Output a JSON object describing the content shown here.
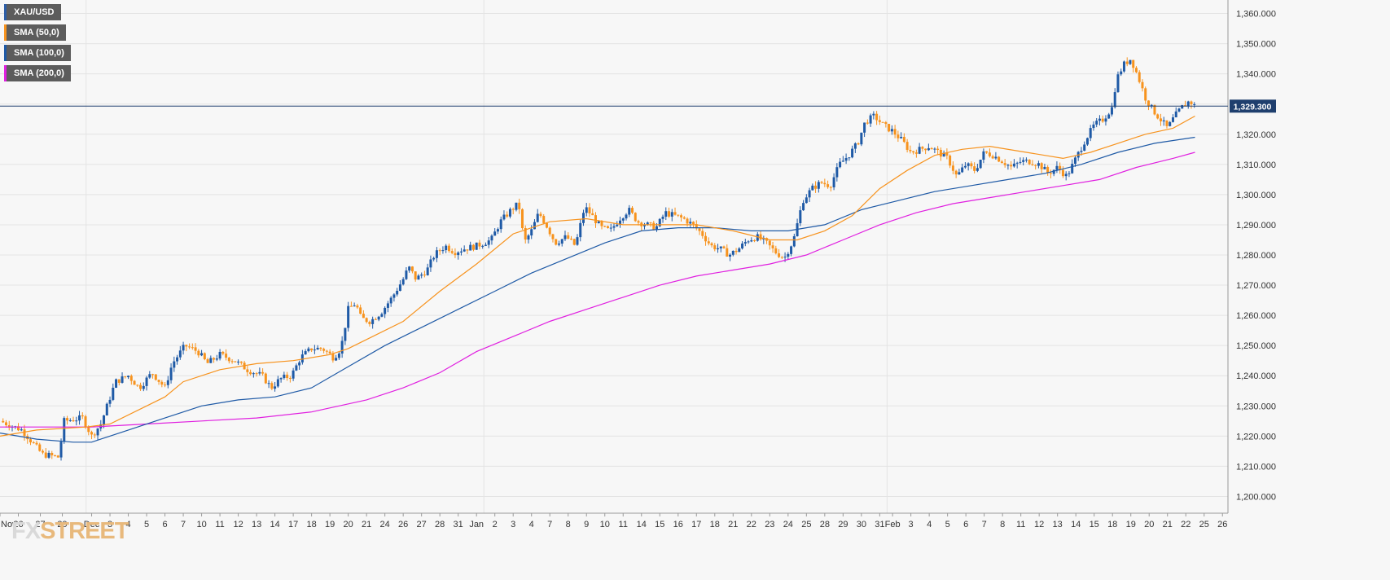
{
  "legend": [
    {
      "label": "XAU/USD",
      "color": "#2e5fa8"
    },
    {
      "label": "SMA (50,0)",
      "color": "#f7931e"
    },
    {
      "label": "SMA (100,0)",
      "color": "#1f5aa6"
    },
    {
      "label": "SMA (200,0)",
      "color": "#e020e0"
    }
  ],
  "logo": {
    "part1": "FX",
    "part2": "STREET"
  },
  "colors": {
    "bullish": "#1f5aa6",
    "bearish": "#f7931e",
    "sma50": "#f7931e",
    "sma100": "#1f5aa6",
    "sma200": "#e020e0",
    "price_line": "#1f3f6e",
    "grid": "#e4e4e4"
  },
  "chart_data": {
    "type": "candlestick",
    "instrument": "XAU/USD",
    "last_price": 1329.3,
    "last_price_label": "1,329.300",
    "ylim": [
      1195,
      1365
    ],
    "yticks": [
      1200,
      1210,
      1220,
      1230,
      1240,
      1250,
      1260,
      1270,
      1280,
      1290,
      1300,
      1310,
      1320,
      1330,
      1340,
      1350,
      1360
    ],
    "ytick_labels": [
      "1,200.000",
      "1,210.000",
      "1,220.000",
      "1,230.000",
      "1,240.000",
      "1,250.000",
      "1,260.000",
      "1,270.000",
      "1,280.000",
      "1,290.000",
      "1,300.000",
      "1,310.000",
      "1,320.000",
      "1,330.000",
      "1,340.000",
      "1,350.000",
      "1,360.000"
    ],
    "x_labels": [
      "Nov",
      "26",
      "27",
      "29",
      "Dec",
      "3",
      "4",
      "5",
      "6",
      "7",
      "10",
      "11",
      "12",
      "13",
      "14",
      "17",
      "18",
      "19",
      "20",
      "21",
      "24",
      "26",
      "27",
      "28",
      "31",
      "Jan",
      "2",
      "3",
      "4",
      "7",
      "8",
      "9",
      "10",
      "11",
      "14",
      "15",
      "16",
      "17",
      "18",
      "21",
      "22",
      "23",
      "24",
      "25",
      "28",
      "29",
      "30",
      "31",
      "Feb",
      "3",
      "4",
      "5",
      "6",
      "7",
      "8",
      "11",
      "12",
      "13",
      "14",
      "15",
      "18",
      "19",
      "20",
      "21",
      "22",
      "25",
      "26"
    ],
    "x_range": [
      0,
      67
    ],
    "x_label_index": [
      0.0,
      1.0,
      2.2,
      3.4,
      5.0,
      6.0,
      7.0,
      8.0,
      9.0,
      10.0,
      11.0,
      12.0,
      13.0,
      14.0,
      15.0,
      16.0,
      17.0,
      18.0,
      19.0,
      20.0,
      21.0,
      22.0,
      23.0,
      24.0,
      25.0,
      26.0,
      27.0,
      28.0,
      29.0,
      30.0,
      31.0,
      32.0,
      33.0,
      34.0,
      35.0,
      36.0,
      37.0,
      38.0,
      39.0,
      40.0,
      41.0,
      42.0,
      43.0,
      44.0,
      45.0,
      46.0,
      47.0,
      48.0,
      48.7,
      49.7,
      50.7,
      51.7,
      52.7,
      53.7,
      54.7,
      55.7,
      56.7,
      57.7,
      58.7,
      59.7,
      60.7,
      61.7,
      62.7,
      63.7,
      64.7,
      65.7,
      66.7
    ],
    "vertical_gridlines_at": [
      4.7,
      26.4,
      48.4
    ],
    "close_path": [
      [
        0,
        1225
      ],
      [
        1.2,
        1222
      ],
      [
        2.3,
        1214
      ],
      [
        3.2,
        1213
      ],
      [
        3.5,
        1225
      ],
      [
        4.5,
        1226
      ],
      [
        5.0,
        1220
      ],
      [
        5.5,
        1224
      ],
      [
        6.3,
        1238
      ],
      [
        7.0,
        1240
      ],
      [
        7.6,
        1236
      ],
      [
        8.3,
        1241
      ],
      [
        9.0,
        1236
      ],
      [
        9.4,
        1244
      ],
      [
        10.1,
        1250
      ],
      [
        10.8,
        1248
      ],
      [
        11.3,
        1244
      ],
      [
        12.0,
        1247
      ],
      [
        12.8,
        1245
      ],
      [
        13.5,
        1242
      ],
      [
        14.3,
        1240
      ],
      [
        14.8,
        1236
      ],
      [
        15.3,
        1239
      ],
      [
        15.9,
        1240
      ],
      [
        16.4,
        1246
      ],
      [
        17.0,
        1249
      ],
      [
        17.6,
        1249
      ],
      [
        18.2,
        1246
      ],
      [
        18.6,
        1249
      ],
      [
        19.0,
        1262
      ],
      [
        19.4,
        1264
      ],
      [
        19.7,
        1259
      ],
      [
        20.2,
        1258
      ],
      [
        20.8,
        1261
      ],
      [
        21.4,
        1266
      ],
      [
        22.0,
        1272
      ],
      [
        22.3,
        1276
      ],
      [
        22.7,
        1272
      ],
      [
        23.3,
        1275
      ],
      [
        23.7,
        1280
      ],
      [
        24.3,
        1283
      ],
      [
        24.8,
        1281
      ],
      [
        25.3,
        1282
      ],
      [
        26.0,
        1283
      ],
      [
        26.8,
        1285
      ],
      [
        27.3,
        1291
      ],
      [
        27.9,
        1295
      ],
      [
        28.3,
        1297
      ],
      [
        28.6,
        1284
      ],
      [
        29.0,
        1288
      ],
      [
        29.4,
        1294
      ],
      [
        29.8,
        1290
      ],
      [
        30.3,
        1284
      ],
      [
        30.9,
        1286
      ],
      [
        31.4,
        1283
      ],
      [
        31.9,
        1296
      ],
      [
        32.3,
        1293
      ],
      [
        32.8,
        1289
      ],
      [
        33.3,
        1288
      ],
      [
        33.8,
        1292
      ],
      [
        34.3,
        1295
      ],
      [
        34.8,
        1291
      ],
      [
        35.3,
        1290
      ],
      [
        35.8,
        1289
      ],
      [
        36.3,
        1294
      ],
      [
        36.8,
        1293
      ],
      [
        37.3,
        1292
      ],
      [
        37.8,
        1290
      ],
      [
        38.3,
        1287
      ],
      [
        38.8,
        1283
      ],
      [
        39.3,
        1282
      ],
      [
        39.8,
        1280
      ],
      [
        40.3,
        1282
      ],
      [
        40.8,
        1285
      ],
      [
        41.3,
        1286
      ],
      [
        41.8,
        1284
      ],
      [
        42.3,
        1281
      ],
      [
        42.8,
        1279
      ],
      [
        43.3,
        1285
      ],
      [
        43.8,
        1298
      ],
      [
        44.3,
        1302
      ],
      [
        44.8,
        1304
      ],
      [
        45.3,
        1303
      ],
      [
        45.8,
        1310
      ],
      [
        46.3,
        1313
      ],
      [
        46.8,
        1317
      ],
      [
        47.2,
        1324
      ],
      [
        47.7,
        1326
      ],
      [
        48.2,
        1323
      ],
      [
        48.7,
        1321
      ],
      [
        49.2,
        1318
      ],
      [
        49.7,
        1314
      ],
      [
        50.2,
        1315
      ],
      [
        50.7,
        1316
      ],
      [
        51.2,
        1314
      ],
      [
        51.7,
        1312
      ],
      [
        52.2,
        1306
      ],
      [
        52.7,
        1310
      ],
      [
        53.2,
        1308
      ],
      [
        53.7,
        1314
      ],
      [
        54.2,
        1313
      ],
      [
        54.7,
        1311
      ],
      [
        55.2,
        1309
      ],
      [
        55.7,
        1311
      ],
      [
        56.2,
        1311
      ],
      [
        56.7,
        1310
      ],
      [
        57.2,
        1307
      ],
      [
        57.7,
        1309
      ],
      [
        58.2,
        1306
      ],
      [
        58.7,
        1312
      ],
      [
        59.2,
        1318
      ],
      [
        59.7,
        1323
      ],
      [
        60.2,
        1325
      ],
      [
        60.7,
        1329
      ],
      [
        60.9,
        1338
      ],
      [
        61.3,
        1343
      ],
      [
        61.7,
        1345
      ],
      [
        62.1,
        1339
      ],
      [
        62.5,
        1332
      ],
      [
        62.9,
        1328
      ],
      [
        63.3,
        1325
      ],
      [
        63.7,
        1322
      ],
      [
        64.1,
        1326
      ],
      [
        64.5,
        1329
      ],
      [
        64.9,
        1331
      ],
      [
        65.2,
        1329.3
      ]
    ],
    "sma50_path": [
      [
        0,
        1220
      ],
      [
        2,
        1222
      ],
      [
        4.7,
        1223
      ],
      [
        6,
        1224
      ],
      [
        8,
        1230
      ],
      [
        9,
        1233
      ],
      [
        10,
        1238
      ],
      [
        12,
        1242
      ],
      [
        14,
        1244
      ],
      [
        16,
        1245
      ],
      [
        18,
        1247
      ],
      [
        19,
        1249
      ],
      [
        20,
        1252
      ],
      [
        22,
        1258
      ],
      [
        24,
        1268
      ],
      [
        26,
        1277
      ],
      [
        28,
        1287
      ],
      [
        30,
        1291
      ],
      [
        32,
        1292
      ],
      [
        34,
        1290
      ],
      [
        36,
        1290
      ],
      [
        38,
        1290
      ],
      [
        40,
        1288
      ],
      [
        42,
        1285
      ],
      [
        43.5,
        1285
      ],
      [
        45,
        1288
      ],
      [
        46.5,
        1293
      ],
      [
        48,
        1302
      ],
      [
        49.5,
        1308
      ],
      [
        51,
        1313
      ],
      [
        52.5,
        1315
      ],
      [
        54,
        1316
      ],
      [
        56,
        1314
      ],
      [
        58,
        1312
      ],
      [
        59.5,
        1314
      ],
      [
        61,
        1317
      ],
      [
        62.5,
        1320
      ],
      [
        64,
        1322
      ],
      [
        65.2,
        1326
      ]
    ],
    "sma100_path": [
      [
        0,
        1221
      ],
      [
        2,
        1219
      ],
      [
        4,
        1218
      ],
      [
        5,
        1218
      ],
      [
        7,
        1222
      ],
      [
        9,
        1226
      ],
      [
        11,
        1230
      ],
      [
        13,
        1232
      ],
      [
        15,
        1233
      ],
      [
        17,
        1236
      ],
      [
        19,
        1243
      ],
      [
        21,
        1250
      ],
      [
        23,
        1256
      ],
      [
        25,
        1262
      ],
      [
        27,
        1268
      ],
      [
        29,
        1274
      ],
      [
        31,
        1279
      ],
      [
        33,
        1284
      ],
      [
        35,
        1288
      ],
      [
        37,
        1289
      ],
      [
        39,
        1289
      ],
      [
        41,
        1288
      ],
      [
        43,
        1288
      ],
      [
        45,
        1290
      ],
      [
        47,
        1295
      ],
      [
        49,
        1298
      ],
      [
        51,
        1301
      ],
      [
        53,
        1303
      ],
      [
        55,
        1305
      ],
      [
        57,
        1307
      ],
      [
        59,
        1310
      ],
      [
        61,
        1314
      ],
      [
        63,
        1317
      ],
      [
        65.2,
        1319
      ]
    ],
    "sma200_path": [
      [
        0,
        1223
      ],
      [
        3,
        1223
      ],
      [
        5,
        1223
      ],
      [
        8,
        1224
      ],
      [
        11,
        1225
      ],
      [
        14,
        1226
      ],
      [
        17,
        1228
      ],
      [
        20,
        1232
      ],
      [
        22,
        1236
      ],
      [
        24,
        1241
      ],
      [
        26,
        1248
      ],
      [
        28,
        1253
      ],
      [
        30,
        1258
      ],
      [
        32,
        1262
      ],
      [
        34,
        1266
      ],
      [
        36,
        1270
      ],
      [
        38,
        1273
      ],
      [
        40,
        1275
      ],
      [
        42,
        1277
      ],
      [
        44,
        1280
      ],
      [
        46,
        1285
      ],
      [
        48,
        1290
      ],
      [
        50,
        1294
      ],
      [
        52,
        1297
      ],
      [
        54,
        1299
      ],
      [
        56,
        1301
      ],
      [
        58,
        1303
      ],
      [
        60,
        1305
      ],
      [
        62,
        1309
      ],
      [
        64,
        1312
      ],
      [
        65.2,
        1314
      ]
    ]
  }
}
